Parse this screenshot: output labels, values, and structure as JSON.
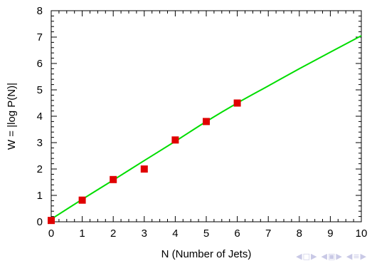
{
  "chart_data": {
    "type": "scatter",
    "xlabel": "N (Number of Jets)",
    "ylabel": "W = |log P(N)|",
    "xlim": [
      0,
      10
    ],
    "ylim": [
      0,
      8
    ],
    "x_ticks": [
      "0",
      "1",
      "2",
      "3",
      "4",
      "5",
      "6",
      "7",
      "8",
      "9",
      "10"
    ],
    "y_ticks": [
      "0",
      "1",
      "2",
      "3",
      "4",
      "5",
      "6",
      "7",
      "8"
    ],
    "grid": false,
    "series": [
      {
        "type": "scatter",
        "color": "#e00000",
        "marker": "square",
        "points": [
          {
            "x": 0,
            "y": 0.05
          },
          {
            "x": 1,
            "y": 0.82
          },
          {
            "x": 2,
            "y": 1.6
          },
          {
            "x": 3,
            "y": 2.0
          },
          {
            "x": 4,
            "y": 3.1
          },
          {
            "x": 5,
            "y": 3.8
          },
          {
            "x": 6,
            "y": 4.5
          }
        ]
      },
      {
        "type": "line",
        "color": "#00dd00",
        "points": [
          {
            "x": 0,
            "y": 0.1
          },
          {
            "x": 1,
            "y": 0.85
          },
          {
            "x": 2,
            "y": 1.58
          },
          {
            "x": 3,
            "y": 2.32
          },
          {
            "x": 4,
            "y": 3.05
          },
          {
            "x": 5,
            "y": 3.8
          },
          {
            "x": 6,
            "y": 4.5
          },
          {
            "x": 7,
            "y": 5.15
          },
          {
            "x": 8,
            "y": 5.8
          },
          {
            "x": 9,
            "y": 6.43
          },
          {
            "x": 10,
            "y": 7.05
          }
        ]
      }
    ]
  },
  "nav_icons": [
    "◀",
    "□",
    "▶",
    "◀",
    "▣",
    "▶",
    "◀",
    "≡",
    "▶"
  ]
}
